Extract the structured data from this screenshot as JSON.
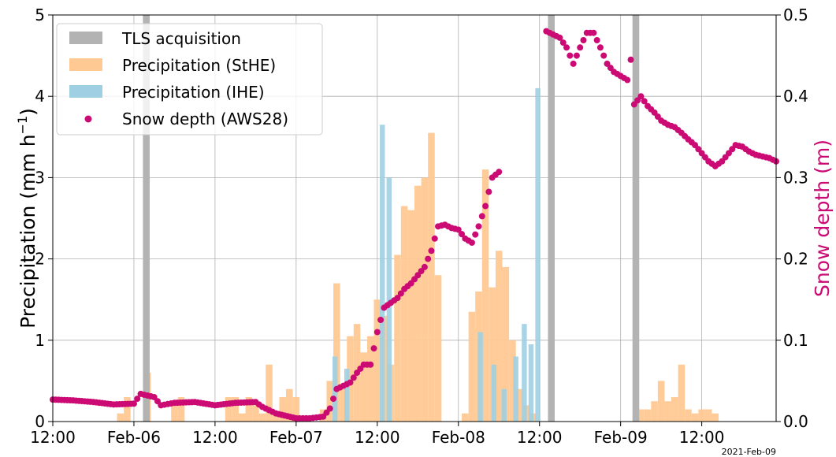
{
  "chart_data": {
    "type": "bar",
    "x_axis": {
      "range": [
        "2021-02-05 12:00",
        "2021-02-09 23:00"
      ],
      "ticks": [
        {
          "t": "2021-02-05 12:00",
          "label": "12:00"
        },
        {
          "t": "2021-02-06 00:00",
          "label": "Feb-06"
        },
        {
          "t": "2021-02-06 12:00",
          "label": "12:00"
        },
        {
          "t": "2021-02-07 00:00",
          "label": "Feb-07"
        },
        {
          "t": "2021-02-07 12:00",
          "label": "12:00"
        },
        {
          "t": "2021-02-08 00:00",
          "label": "Feb-08"
        },
        {
          "t": "2021-02-08 12:00",
          "label": "12:00"
        },
        {
          "t": "2021-02-09 00:00",
          "label": "Feb-09"
        },
        {
          "t": "2021-02-09 12:00",
          "label": "12:00"
        }
      ],
      "offset_label": "2021-Feb-09"
    },
    "y_left": {
      "label": "Precipitation (mm h",
      "label_sup": "−1",
      "label_end": ")",
      "range": [
        0,
        5
      ],
      "ticks": [
        "0",
        "1",
        "2",
        "3",
        "4",
        "5"
      ]
    },
    "y_right": {
      "label": "Snow depth (m)",
      "range": [
        0,
        0.5
      ],
      "ticks": [
        "0.0",
        "0.1",
        "0.2",
        "0.3",
        "0.4",
        "0.5"
      ]
    },
    "grid": true,
    "legend_position": "top-left",
    "colors": {
      "tls": "#b3b3b3",
      "stHE": "#ffc993",
      "iHE": "#9ecfe3",
      "snow": "#cc0a74"
    },
    "series": [
      {
        "name": "TLS acquisition",
        "kind": "vertical-band",
        "times": [
          "2021-02-06 01:50",
          "2021-02-08 13:45",
          "2021-02-09 02:15"
        ],
        "duration_h": 1.0
      },
      {
        "name": "Precipitation (StHE)",
        "kind": "bar",
        "bin_h": 1,
        "data": [
          [
            "2021-02-05 22:00",
            0.1
          ],
          [
            "2021-02-05 23:00",
            0.3
          ],
          [
            "2021-02-06 02:00",
            0.6
          ],
          [
            "2021-02-06 06:00",
            0.2
          ],
          [
            "2021-02-06 07:00",
            0.3
          ],
          [
            "2021-02-06 14:00",
            0.3
          ],
          [
            "2021-02-06 15:00",
            0.3
          ],
          [
            "2021-02-06 16:00",
            0.1
          ],
          [
            "2021-02-06 17:00",
            0.3
          ],
          [
            "2021-02-06 18:00",
            0.2
          ],
          [
            "2021-02-06 19:00",
            0.1
          ],
          [
            "2021-02-06 20:00",
            0.7
          ],
          [
            "2021-02-06 21:00",
            0.1
          ],
          [
            "2021-02-06 22:00",
            0.3
          ],
          [
            "2021-02-06 23:00",
            0.4
          ],
          [
            "2021-02-07 00:00",
            0.3
          ],
          [
            "2021-02-07 04:00",
            0.15
          ],
          [
            "2021-02-07 05:00",
            0.5
          ],
          [
            "2021-02-07 06:00",
            1.7
          ],
          [
            "2021-02-07 07:00",
            0.4
          ],
          [
            "2021-02-07 08:00",
            1.05
          ],
          [
            "2021-02-07 09:00",
            1.2
          ],
          [
            "2021-02-07 10:00",
            0.85
          ],
          [
            "2021-02-07 11:00",
            1.05
          ],
          [
            "2021-02-07 12:00",
            1.5
          ],
          [
            "2021-02-07 13:00",
            1.3
          ],
          [
            "2021-02-07 14:00",
            0.7
          ],
          [
            "2021-02-07 15:00",
            2.05
          ],
          [
            "2021-02-07 16:00",
            2.65
          ],
          [
            "2021-02-07 17:00",
            2.6
          ],
          [
            "2021-02-07 18:00",
            2.9
          ],
          [
            "2021-02-07 19:00",
            3.0
          ],
          [
            "2021-02-07 20:00",
            3.55
          ],
          [
            "2021-02-07 21:00",
            1.8
          ],
          [
            "2021-02-08 01:00",
            0.1
          ],
          [
            "2021-02-08 02:00",
            1.35
          ],
          [
            "2021-02-08 03:00",
            1.6
          ],
          [
            "2021-02-08 04:00",
            3.1
          ],
          [
            "2021-02-08 05:00",
            1.65
          ],
          [
            "2021-02-08 06:00",
            2.1
          ],
          [
            "2021-02-08 07:00",
            1.9
          ],
          [
            "2021-02-08 08:00",
            1.0
          ],
          [
            "2021-02-08 09:00",
            0.4
          ],
          [
            "2021-02-08 10:00",
            0.2
          ],
          [
            "2021-02-08 11:00",
            0.1
          ],
          [
            "2021-02-09 03:00",
            0.15
          ],
          [
            "2021-02-09 04:00",
            0.15
          ],
          [
            "2021-02-09 05:00",
            0.25
          ],
          [
            "2021-02-09 06:00",
            0.5
          ],
          [
            "2021-02-09 07:00",
            0.25
          ],
          [
            "2021-02-09 08:00",
            0.3
          ],
          [
            "2021-02-09 09:00",
            0.7
          ],
          [
            "2021-02-09 10:00",
            0.15
          ],
          [
            "2021-02-09 11:00",
            0.1
          ],
          [
            "2021-02-09 12:00",
            0.15
          ],
          [
            "2021-02-09 13:00",
            0.15
          ],
          [
            "2021-02-09 14:00",
            0.1
          ]
        ]
      },
      {
        "name": "Precipitation (IHE)",
        "kind": "bar",
        "bin_h": 0.75,
        "data": [
          [
            "2021-02-07 05:45",
            0.8
          ],
          [
            "2021-02-07 07:30",
            0.65
          ],
          [
            "2021-02-07 12:45",
            3.65
          ],
          [
            "2021-02-07 13:45",
            3.0
          ],
          [
            "2021-02-08 03:15",
            1.1
          ],
          [
            "2021-02-08 05:15",
            0.7
          ],
          [
            "2021-02-08 06:45",
            0.4
          ],
          [
            "2021-02-08 08:30",
            0.8
          ],
          [
            "2021-02-08 09:45",
            1.2
          ],
          [
            "2021-02-08 10:45",
            0.95
          ],
          [
            "2021-02-08 11:45",
            4.1
          ]
        ]
      },
      {
        "name": "Snow depth (AWS28)",
        "kind": "scatter",
        "axis": "right",
        "data": [
          [
            "2021-02-05 12:00",
            0.027
          ],
          [
            "2021-02-05 15:00",
            0.026
          ],
          [
            "2021-02-05 18:00",
            0.024
          ],
          [
            "2021-02-05 21:00",
            0.021
          ],
          [
            "2021-02-06 00:00",
            0.022
          ],
          [
            "2021-02-06 01:00",
            0.034
          ],
          [
            "2021-02-06 03:00",
            0.03
          ],
          [
            "2021-02-06 04:00",
            0.02
          ],
          [
            "2021-02-06 06:00",
            0.023
          ],
          [
            "2021-02-06 09:00",
            0.024
          ],
          [
            "2021-02-06 12:00",
            0.02
          ],
          [
            "2021-02-06 15:00",
            0.023
          ],
          [
            "2021-02-06 18:00",
            0.024
          ],
          [
            "2021-02-06 19:00",
            0.018
          ],
          [
            "2021-02-06 21:00",
            0.01
          ],
          [
            "2021-02-07 00:00",
            0.004
          ],
          [
            "2021-02-07 02:00",
            0.004
          ],
          [
            "2021-02-07 04:00",
            0.006
          ],
          [
            "2021-02-07 05:00",
            0.016
          ],
          [
            "2021-02-07 06:00",
            0.04
          ],
          [
            "2021-02-07 08:00",
            0.048
          ],
          [
            "2021-02-07 09:00",
            0.06
          ],
          [
            "2021-02-07 10:00",
            0.07
          ],
          [
            "2021-02-07 11:00",
            0.07
          ],
          [
            "2021-02-07 12:00",
            0.11
          ],
          [
            "2021-02-07 13:00",
            0.14
          ],
          [
            "2021-02-07 14:00",
            0.146
          ],
          [
            "2021-02-07 15:00",
            0.152
          ],
          [
            "2021-02-07 16:00",
            0.163
          ],
          [
            "2021-02-07 17:00",
            0.17
          ],
          [
            "2021-02-07 18:00",
            0.18
          ],
          [
            "2021-02-07 19:00",
            0.19
          ],
          [
            "2021-02-07 20:00",
            0.21
          ],
          [
            "2021-02-07 21:00",
            0.24
          ],
          [
            "2021-02-07 22:00",
            0.242
          ],
          [
            "2021-02-07 23:00",
            0.238
          ],
          [
            "2021-02-08 00:00",
            0.236
          ],
          [
            "2021-02-08 01:00",
            0.225
          ],
          [
            "2021-02-08 02:00",
            0.22
          ],
          [
            "2021-02-08 03:00",
            0.24
          ],
          [
            "2021-02-08 04:00",
            0.265
          ],
          [
            "2021-02-08 05:00",
            0.3
          ],
          [
            "2021-02-08 06:00",
            0.307
          ],
          [
            "2021-02-08 13:00",
            0.48
          ],
          [
            "2021-02-08 14:00",
            0.476
          ],
          [
            "2021-02-08 15:00",
            0.472
          ],
          [
            "2021-02-08 16:00",
            0.46
          ],
          [
            "2021-02-08 17:00",
            0.44
          ],
          [
            "2021-02-08 18:00",
            0.46
          ],
          [
            "2021-02-08 19:00",
            0.478
          ],
          [
            "2021-02-08 20:00",
            0.478
          ],
          [
            "2021-02-08 21:00",
            0.46
          ],
          [
            "2021-02-08 22:00",
            0.44
          ],
          [
            "2021-02-08 23:00",
            0.43
          ],
          [
            "2021-02-09 00:00",
            0.425
          ],
          [
            "2021-02-09 01:00",
            0.42
          ],
          [
            "2021-02-09 01:30",
            0.445
          ],
          [
            "2021-02-09 02:00",
            0.39
          ],
          [
            "2021-02-09 03:00",
            0.4
          ],
          [
            "2021-02-09 04:00",
            0.388
          ],
          [
            "2021-02-09 05:00",
            0.38
          ],
          [
            "2021-02-09 06:00",
            0.37
          ],
          [
            "2021-02-09 07:00",
            0.365
          ],
          [
            "2021-02-09 08:00",
            0.362
          ],
          [
            "2021-02-09 09:00",
            0.355
          ],
          [
            "2021-02-09 10:00",
            0.347
          ],
          [
            "2021-02-09 11:00",
            0.34
          ],
          [
            "2021-02-09 12:00",
            0.33
          ],
          [
            "2021-02-09 13:00",
            0.32
          ],
          [
            "2021-02-09 14:00",
            0.314
          ],
          [
            "2021-02-09 15:00",
            0.32
          ],
          [
            "2021-02-09 16:00",
            0.33
          ],
          [
            "2021-02-09 17:00",
            0.34
          ],
          [
            "2021-02-09 18:00",
            0.338
          ],
          [
            "2021-02-09 19:00",
            0.332
          ],
          [
            "2021-02-09 20:00",
            0.328
          ],
          [
            "2021-02-09 21:00",
            0.326
          ],
          [
            "2021-02-09 22:00",
            0.324
          ],
          [
            "2021-02-09 23:00",
            0.32
          ]
        ]
      }
    ]
  }
}
